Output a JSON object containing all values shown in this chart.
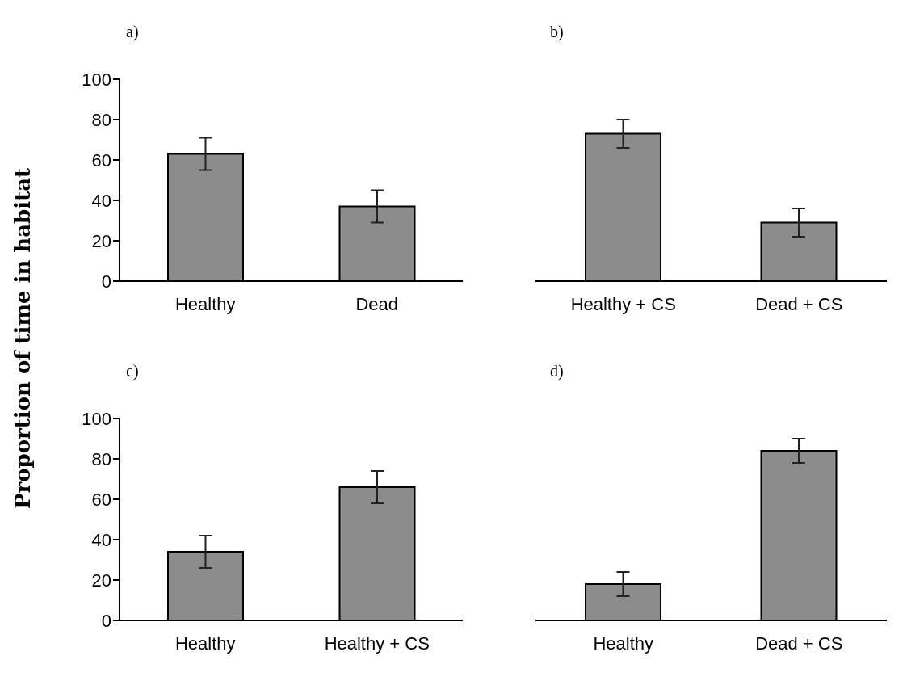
{
  "chart_data": [
    {
      "type": "bar",
      "title": "a)",
      "ylabel": "Proportion of time in habitat",
      "categories": [
        "Healthy",
        "Dead"
      ],
      "values": [
        63,
        37
      ],
      "errors": [
        8,
        8
      ],
      "color": "#8c8c8c",
      "ylim": [
        0,
        100
      ],
      "yticks": [
        0,
        20,
        40,
        60,
        80,
        100
      ],
      "grid": false,
      "legend": false
    },
    {
      "type": "bar",
      "title": "b)",
      "categories": [
        "Healthy + CS",
        "Dead + CS"
      ],
      "values": [
        73,
        29
      ],
      "errors": [
        7,
        7
      ],
      "color": "#8c8c8c",
      "ylim": [
        0,
        100
      ],
      "yticks": [
        0,
        20,
        40,
        60,
        80,
        100
      ],
      "tick_labels": "x",
      "grid": false,
      "legend": false
    },
    {
      "type": "bar",
      "title": "c)",
      "categories": [
        "Healthy",
        "Healthy + CS"
      ],
      "values": [
        34,
        66
      ],
      "errors": [
        8,
        8
      ],
      "color": "#8c8c8c",
      "ylim": [
        0,
        100
      ],
      "yticks": [
        0,
        20,
        40,
        60,
        80,
        100
      ],
      "grid": false,
      "legend": false
    },
    {
      "type": "bar",
      "title": "d)",
      "categories": [
        "Healthy",
        "Dead + CS"
      ],
      "values": [
        18,
        84
      ],
      "errors": [
        6,
        6
      ],
      "color": "#8c8c8c",
      "ylim": [
        0,
        100
      ],
      "yticks": [
        0,
        20,
        40,
        60,
        80,
        100
      ],
      "tick_labels": "x",
      "grid": false,
      "legend": false
    }
  ]
}
